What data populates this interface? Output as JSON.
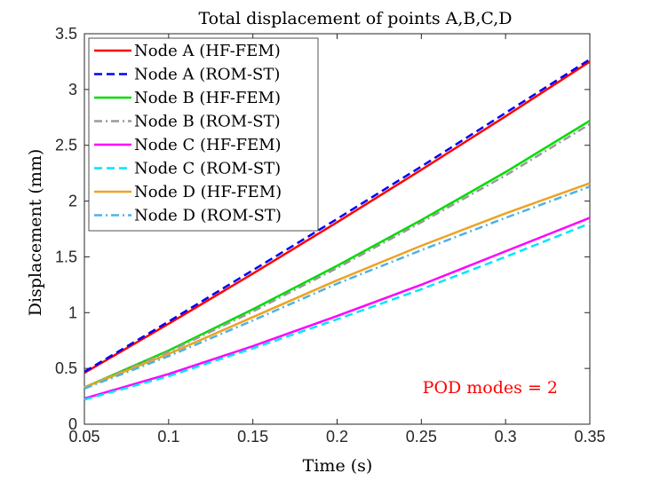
{
  "chart_data": {
    "type": "line",
    "title": "Total displacement of points A,B,C,D",
    "xlabel": "Time (s)",
    "ylabel": "Displacement (mm)",
    "xlim": [
      0.05,
      0.35
    ],
    "ylim": [
      0,
      3.5
    ],
    "xticks": [
      0.05,
      0.1,
      0.15,
      0.2,
      0.25,
      0.3,
      0.35
    ],
    "xtick_labels": [
      "0.05",
      "0.1",
      "0.15",
      "0.2",
      "0.25",
      "0.3",
      "0.35"
    ],
    "yticks": [
      0,
      0.5,
      1,
      1.5,
      2,
      2.5,
      3,
      3.5
    ],
    "ytick_labels": [
      "0",
      "0.5",
      "1",
      "1.5",
      "2",
      "2.5",
      "3",
      "3.5"
    ],
    "grid": false,
    "legend_position": "top-left",
    "annotation": {
      "text": "POD modes = 2",
      "color": "#ff0000"
    },
    "x": [
      0.05,
      0.1,
      0.15,
      0.2,
      0.25,
      0.3,
      0.35
    ],
    "series": [
      {
        "name": "Node A (HF-FEM)",
        "color": "#ff0000",
        "dash": "solid",
        "values": [
          0.46,
          0.9,
          1.35,
          1.81,
          2.28,
          2.76,
          3.25
        ]
      },
      {
        "name": "Node A (ROM-ST)",
        "color": "#0000ff",
        "dash": "dashed",
        "values": [
          0.47,
          0.92,
          1.38,
          1.84,
          2.31,
          2.79,
          3.27
        ]
      },
      {
        "name": "Node B (HF-FEM)",
        "color": "#00dd00",
        "dash": "solid",
        "values": [
          0.33,
          0.66,
          1.03,
          1.42,
          1.83,
          2.26,
          2.72
        ]
      },
      {
        "name": "Node B (ROM-ST)",
        "color": "#9a9a9a",
        "dash": "dashdot",
        "values": [
          0.33,
          0.65,
          1.01,
          1.4,
          1.81,
          2.23,
          2.69
        ]
      },
      {
        "name": "Node C (HF-FEM)",
        "color": "#ff00ff",
        "dash": "solid",
        "values": [
          0.23,
          0.45,
          0.7,
          0.97,
          1.25,
          1.55,
          1.85
        ]
      },
      {
        "name": "Node C (ROM-ST)",
        "color": "#00e5ff",
        "dash": "dashed",
        "values": [
          0.22,
          0.43,
          0.68,
          0.94,
          1.21,
          1.5,
          1.8
        ]
      },
      {
        "name": "Node D (HF-FEM)",
        "color": "#eda322",
        "dash": "solid",
        "values": [
          0.33,
          0.63,
          0.96,
          1.29,
          1.6,
          1.89,
          2.16
        ]
      },
      {
        "name": "Node D (ROM-ST)",
        "color": "#4bb3e8",
        "dash": "dashdot",
        "values": [
          0.32,
          0.61,
          0.93,
          1.26,
          1.56,
          1.85,
          2.13
        ]
      }
    ]
  }
}
